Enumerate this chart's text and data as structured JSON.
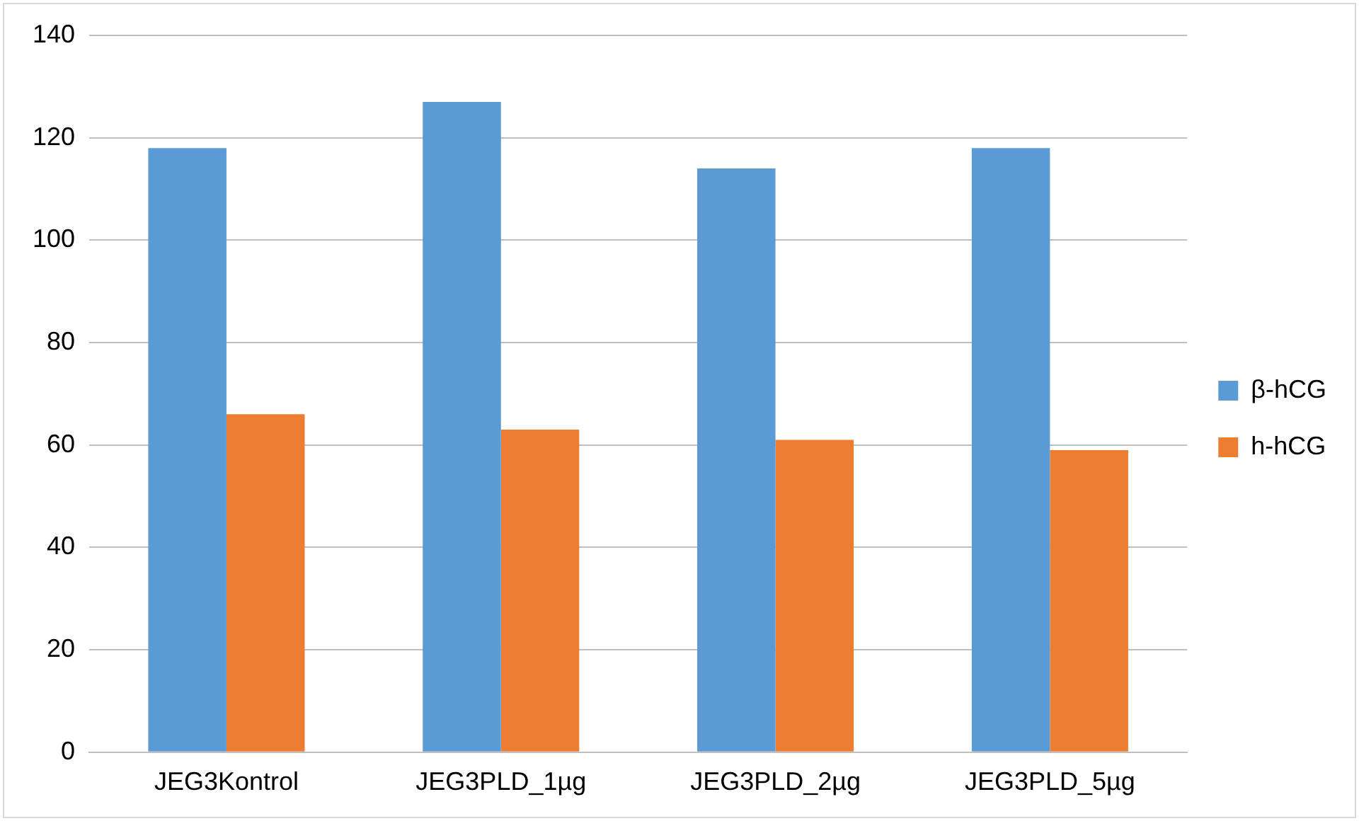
{
  "chart_data": {
    "type": "bar",
    "categories": [
      "JEG3Kontrol",
      "JEG3PLD_1µg",
      "JEG3PLD_2µg",
      "JEG3PLD_5µg"
    ],
    "series": [
      {
        "name": "β-hCG",
        "color": "#5b9bd5",
        "values": [
          118,
          127,
          114,
          118
        ]
      },
      {
        "name": "h-hCG",
        "color": "#ed7d31",
        "values": [
          66,
          63,
          61,
          59
        ]
      }
    ],
    "ylim": [
      0,
      140
    ],
    "yticks": [
      0,
      20,
      40,
      60,
      80,
      100,
      120,
      140
    ],
    "grid": "y",
    "legend": "right"
  }
}
